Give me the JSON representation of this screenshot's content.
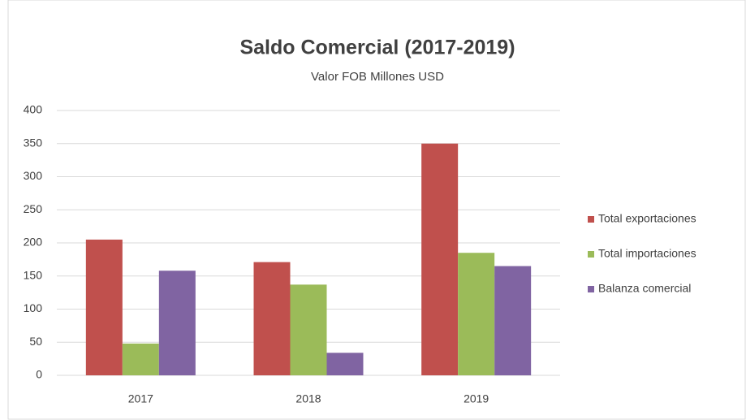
{
  "chart_data": {
    "type": "bar",
    "title": "Saldo Comercial  (2017-2019)",
    "subtitle": "Valor FOB Millones USD",
    "categories": [
      "2017",
      "2018",
      "2019"
    ],
    "series": [
      {
        "name": "Total exportaciones",
        "color": "#c0504d",
        "values": [
          205,
          171,
          350
        ]
      },
      {
        "name": "Total importaciones",
        "color": "#9bbb59",
        "values": [
          48,
          137,
          185
        ]
      },
      {
        "name": "Balanza comercial",
        "color": "#8064a2",
        "values": [
          158,
          34,
          165
        ]
      }
    ],
    "ylim": [
      0,
      400
    ],
    "yticks": [
      0,
      50,
      100,
      150,
      200,
      250,
      300,
      350,
      400
    ],
    "grid": true,
    "legend": "right"
  }
}
